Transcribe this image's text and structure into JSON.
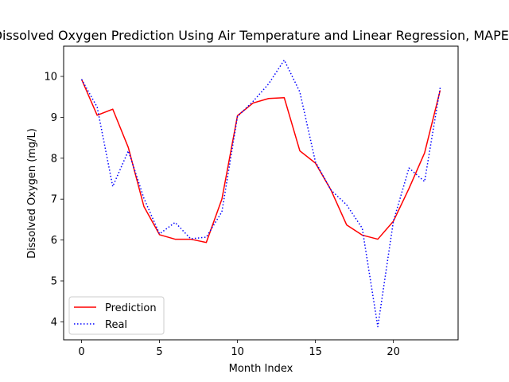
{
  "chart_data": {
    "type": "line",
    "title": "Dissolved Oxygen Prediction Using Air Temperature and Linear Regression, MAPE=",
    "xlabel": "Month Index",
    "ylabel": "Dissolved Oxygen (mg/L)",
    "xlim": [
      -1.15,
      24.15
    ],
    "ylim": [
      3.56,
      10.74
    ],
    "xticks": [
      0,
      5,
      10,
      15,
      20
    ],
    "yticks": [
      4,
      5,
      6,
      7,
      8,
      9,
      10
    ],
    "grid": false,
    "legend_position": "lower-left",
    "x": [
      0,
      1,
      2,
      3,
      4,
      5,
      6,
      7,
      8,
      9,
      10,
      11,
      12,
      13,
      14,
      15,
      16,
      17,
      18,
      19,
      20,
      21,
      22,
      23
    ],
    "series": [
      {
        "name": "Prediction",
        "color": "#ff0000",
        "style": "solid",
        "values": [
          9.93,
          9.05,
          9.2,
          8.26,
          6.82,
          6.13,
          6.02,
          6.02,
          5.94,
          7.0,
          9.04,
          9.35,
          9.46,
          9.48,
          8.18,
          7.88,
          7.22,
          6.37,
          6.12,
          6.02,
          6.46,
          7.26,
          8.13,
          9.66
        ]
      },
      {
        "name": "Real",
        "color": "#0000ff",
        "style": "dotted",
        "values": [
          9.93,
          9.25,
          7.31,
          8.18,
          7.02,
          6.15,
          6.43,
          6.03,
          6.07,
          6.69,
          9.02,
          9.39,
          9.82,
          10.4,
          9.62,
          7.91,
          7.22,
          6.86,
          6.29,
          3.88,
          6.46,
          7.76,
          7.43,
          9.72
        ]
      }
    ]
  }
}
